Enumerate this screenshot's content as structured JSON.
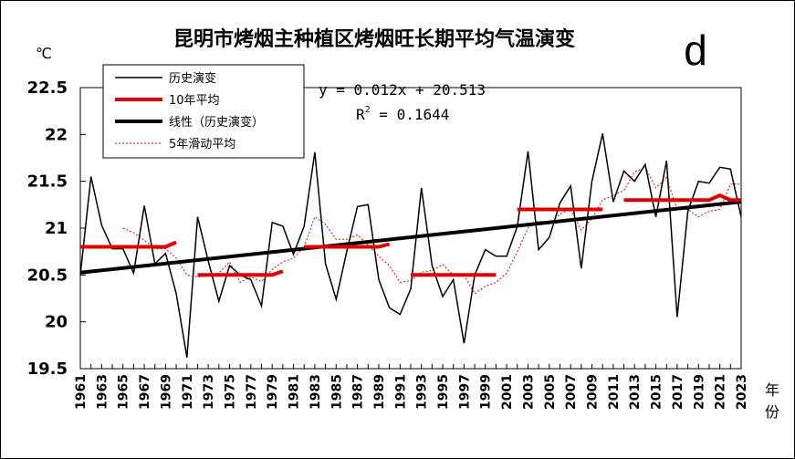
{
  "chart_data": {
    "type": "line",
    "title": "昆明市烤烟主种植区烤烟旺长期平均气温演变",
    "panel_label": "d",
    "ylabel": "℃",
    "xlabel_chars": [
      "年",
      "份"
    ],
    "ylim": [
      19.5,
      22.5
    ],
    "yticks": [
      19.5,
      20,
      20.5,
      21,
      21.5,
      22,
      22.5
    ],
    "ytick_labels": [
      "19.5",
      "20",
      "20.5",
      "21",
      "21.5",
      "22",
      "22.5"
    ],
    "xlim": [
      1961,
      2023
    ],
    "xticks": [
      1961,
      1963,
      1965,
      1967,
      1969,
      1971,
      1973,
      1975,
      1977,
      1979,
      1981,
      1983,
      1985,
      1987,
      1989,
      1991,
      1993,
      1995,
      1997,
      1999,
      2001,
      2003,
      2005,
      2007,
      2009,
      2011,
      2013,
      2015,
      2017,
      2019,
      2021,
      2023
    ],
    "legend": {
      "position": "top-left",
      "entries": [
        "历史演变",
        "10年平均",
        "线性（历史演变）",
        "5年滑动平均"
      ]
    },
    "equation": "y = 0.012x + 20.513",
    "r2_prefix": "R",
    "r2_sup": "2",
    "r2_suffix": " = 0.1644",
    "colors": {
      "history": "#000000",
      "decade": "#e00000",
      "trend": "#000000",
      "moving": "#e00000"
    },
    "series": [
      {
        "name": "历史演变",
        "x": [
          1961,
          1962,
          1963,
          1964,
          1965,
          1966,
          1967,
          1968,
          1969,
          1970,
          1971,
          1972,
          1973,
          1974,
          1975,
          1976,
          1977,
          1978,
          1979,
          1980,
          1981,
          1982,
          1983,
          1984,
          1985,
          1986,
          1987,
          1988,
          1989,
          1990,
          1991,
          1992,
          1993,
          1994,
          1995,
          1996,
          1997,
          1998,
          1999,
          2000,
          2001,
          2002,
          2003,
          2004,
          2005,
          2006,
          2007,
          2008,
          2009,
          2010,
          2011,
          2012,
          2013,
          2014,
          2015,
          2016,
          2017,
          2018,
          2019,
          2020,
          2021,
          2022,
          2023
        ],
        "values": [
          20.5,
          21.55,
          21.03,
          20.78,
          20.78,
          20.52,
          21.24,
          20.62,
          20.73,
          20.3,
          19.62,
          21.12,
          20.65,
          20.22,
          20.6,
          20.5,
          20.45,
          20.17,
          21.06,
          21.02,
          20.72,
          21.02,
          21.81,
          20.62,
          20.24,
          20.75,
          21.23,
          21.25,
          20.45,
          20.15,
          20.08,
          20.35,
          21.43,
          20.6,
          20.27,
          20.45,
          19.77,
          20.5,
          20.77,
          20.7,
          20.7,
          21.02,
          21.82,
          20.77,
          20.9,
          21.27,
          21.45,
          20.57,
          21.5,
          22.01,
          21.28,
          21.61,
          21.5,
          21.68,
          21.12,
          21.72,
          20.05,
          21.18,
          21.5,
          21.48,
          21.65,
          21.63,
          21.12
        ]
      },
      {
        "name": "10年平均",
        "segments": [
          {
            "x": [
              1961,
              1969
            ],
            "values": [
              20.8,
              20.8
            ],
            "end": [
              1970,
              20.85
            ]
          },
          {
            "x": [
              1972,
              1979
            ],
            "values": [
              20.5,
              20.5
            ],
            "end": [
              1980,
              20.54
            ]
          },
          {
            "x": [
              1982,
              1989
            ],
            "values": [
              20.8,
              20.8
            ],
            "end": [
              1990,
              20.83
            ]
          },
          {
            "x": [
              1992,
              2000
            ],
            "values": [
              20.5,
              20.5
            ]
          },
          {
            "x": [
              2002,
              2010
            ],
            "values": [
              21.2,
              21.2
            ]
          },
          {
            "x": [
              2012,
              2020
            ],
            "values": [
              21.3,
              21.3
            ],
            "tail_x": [
              2021,
              2022,
              2023
            ],
            "tail_values": [
              21.35,
              21.3,
              21.3
            ]
          }
        ]
      },
      {
        "name": "线性（历史演变）",
        "x": [
          1961,
          2023
        ],
        "values": [
          20.525,
          21.281
        ]
      },
      {
        "name": "5年滑动平均",
        "x": [
          1965,
          1966,
          1967,
          1968,
          1969,
          1970,
          1971,
          1972,
          1973,
          1974,
          1975,
          1976,
          1977,
          1978,
          1979,
          1980,
          1981,
          1982,
          1983,
          1984,
          1985,
          1986,
          1987,
          1988,
          1989,
          1990,
          1991,
          1992,
          1993,
          1994,
          1995,
          1996,
          1997,
          1998,
          1999,
          2000,
          2001,
          2002,
          2003,
          2004,
          2005,
          2006,
          2007,
          2008,
          2009,
          2010,
          2011,
          2012,
          2013,
          2014,
          2015,
          2016,
          2017,
          2018,
          2019,
          2020,
          2021,
          2022,
          2023
        ],
        "values": [
          21.0,
          20.95,
          20.87,
          20.78,
          20.78,
          20.68,
          20.5,
          20.48,
          20.49,
          20.52,
          20.64,
          20.42,
          20.48,
          20.43,
          20.56,
          20.64,
          20.68,
          20.8,
          21.12,
          21.04,
          20.88,
          20.88,
          20.93,
          20.82,
          20.7,
          20.6,
          20.42,
          20.44,
          20.53,
          20.55,
          20.61,
          20.5,
          20.5,
          20.3,
          20.38,
          20.42,
          20.52,
          20.75,
          21.0,
          21.08,
          21.04,
          21.15,
          21.2,
          20.98,
          21.1,
          21.3,
          21.35,
          21.4,
          21.6,
          21.65,
          21.43,
          21.54,
          21.2,
          21.2,
          21.12,
          21.18,
          21.2,
          21.47,
          21.47
        ]
      }
    ]
  }
}
